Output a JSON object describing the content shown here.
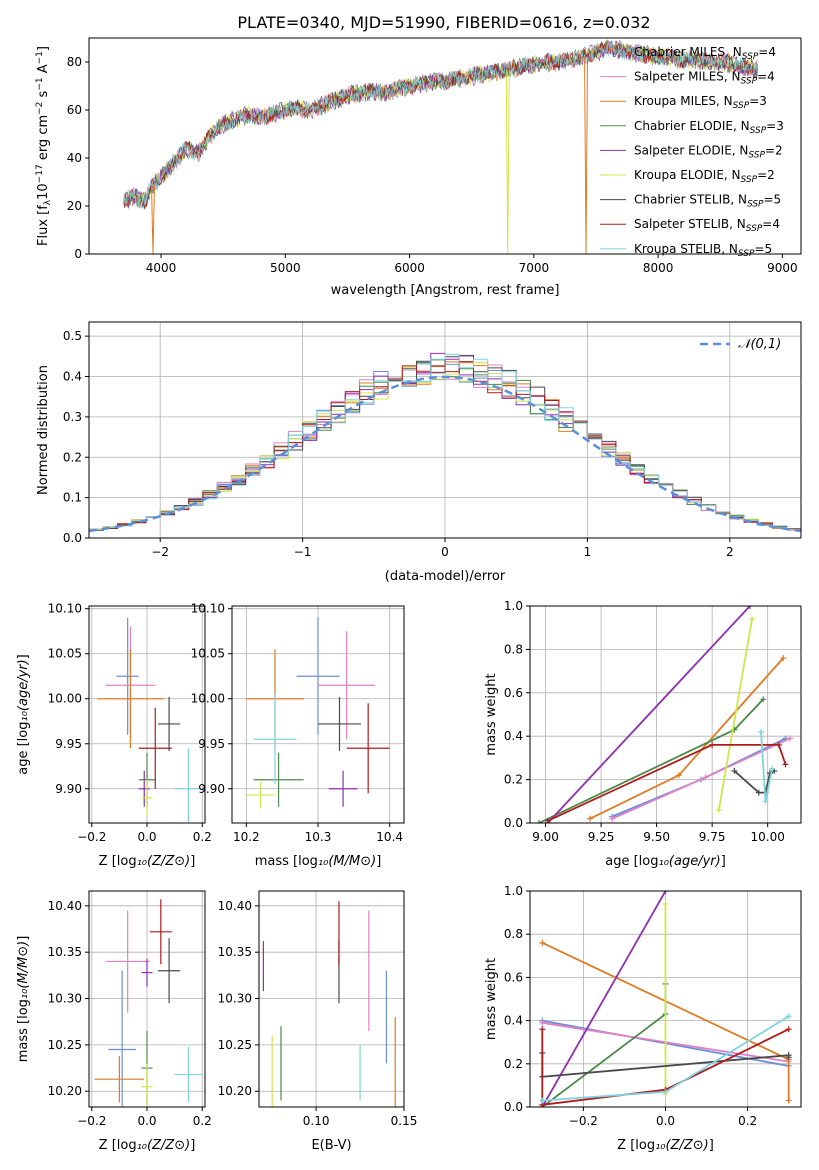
{
  "figure_title": "PLATE=0340, MJD=51990, FIBERID=0616, z=0.032",
  "colors": {
    "Chabrier MILES": "#6b8fd6",
    "Salpeter MILES": "#e27fc7",
    "Kroupa MILES": "#e07b22",
    "Chabrier ELODIE": "#4c8a4c",
    "Salpeter ELODIE": "#8e2fb0",
    "Kroupa ELODIE": "#cfe64a",
    "Chabrier STELIB": "#4a4a4a",
    "Salpeter STELIB": "#b01c1c",
    "Kroupa STELIB": "#7fd3df"
  },
  "chart_data": [
    {
      "id": "spectrum",
      "type": "line",
      "title": "PLATE=0340, MJD=51990, FIBERID=0616, z=0.032",
      "xlabel": "wavelength [Angstrom, rest frame]",
      "ylabel": "Flux [f_λ 10^-17 erg cm^-2 s^-1 A^-1]",
      "xlim": [
        3420,
        9150
      ],
      "ylim": [
        0,
        90
      ],
      "xticks": [
        4000,
        5000,
        6000,
        7000,
        8000,
        9000
      ],
      "yticks": [
        0,
        20,
        40,
        60,
        80
      ],
      "grid": false,
      "legend_position": "upper-right",
      "legend": [
        {
          "label": "Chabrier MILES, N",
          "sub": "SSP",
          "tail": "=4",
          "series": "Chabrier MILES"
        },
        {
          "label": "Salpeter MILES, N",
          "sub": "SSP",
          "tail": "=4",
          "series": "Salpeter MILES"
        },
        {
          "label": "Kroupa MILES, N",
          "sub": "SSP",
          "tail": "=3",
          "series": "Kroupa MILES"
        },
        {
          "label": "Chabrier ELODIE, N",
          "sub": "SSP",
          "tail": "=3",
          "series": "Chabrier ELODIE"
        },
        {
          "label": "Salpeter ELODIE, N",
          "sub": "SSP",
          "tail": "=2",
          "series": "Salpeter ELODIE"
        },
        {
          "label": "Kroupa ELODIE, N",
          "sub": "SSP",
          "tail": "=2",
          "series": "Kroupa ELODIE"
        },
        {
          "label": "Chabrier STELIB, N",
          "sub": "SSP",
          "tail": "=5",
          "series": "Chabrier STELIB"
        },
        {
          "label": "Salpeter STELIB, N",
          "sub": "SSP",
          "tail": "=4",
          "series": "Salpeter STELIB"
        },
        {
          "label": "Kroupa STELIB, N",
          "sub": "SSP",
          "tail": "=5",
          "series": "Kroupa STELIB"
        }
      ],
      "continuum": [
        [
          3700,
          22
        ],
        [
          3780,
          24
        ],
        [
          3880,
          22
        ],
        [
          3920,
          28
        ],
        [
          3960,
          30
        ],
        [
          4000,
          32
        ],
        [
          4100,
          38
        ],
        [
          4200,
          44
        ],
        [
          4300,
          42
        ],
        [
          4400,
          50
        ],
        [
          4500,
          54
        ],
        [
          4600,
          56
        ],
        [
          4700,
          58
        ],
        [
          4800,
          57
        ],
        [
          4900,
          58
        ],
        [
          5000,
          60
        ],
        [
          5100,
          61
        ],
        [
          5200,
          60
        ],
        [
          5300,
          62
        ],
        [
          5400,
          64
        ],
        [
          5500,
          66
        ],
        [
          5600,
          67
        ],
        [
          5700,
          68
        ],
        [
          5800,
          67
        ],
        [
          5900,
          69
        ],
        [
          6000,
          70
        ],
        [
          6100,
          71
        ],
        [
          6200,
          72
        ],
        [
          6300,
          72
        ],
        [
          6400,
          73
        ],
        [
          6500,
          74
        ],
        [
          6600,
          75
        ],
        [
          6700,
          76
        ],
        [
          6800,
          77
        ],
        [
          6900,
          78
        ],
        [
          7000,
          79
        ],
        [
          7100,
          80
        ],
        [
          7200,
          80
        ],
        [
          7300,
          81
        ],
        [
          7400,
          82
        ],
        [
          7500,
          84
        ],
        [
          7600,
          86
        ],
        [
          7700,
          85
        ],
        [
          7800,
          84
        ],
        [
          7900,
          83
        ],
        [
          8000,
          82
        ],
        [
          8100,
          82
        ],
        [
          8200,
          81
        ],
        [
          8300,
          81
        ],
        [
          8400,
          80
        ],
        [
          8500,
          80
        ],
        [
          8600,
          79
        ],
        [
          8700,
          78
        ],
        [
          8800,
          77
        ]
      ],
      "dips": [
        {
          "series": "Kroupa MILES",
          "x": 3935,
          "y": 0
        },
        {
          "series": "Kroupa ELODIE",
          "x": 6790,
          "y": 0
        },
        {
          "series": "Kroupa MILES",
          "x": 7420,
          "y": 0
        }
      ]
    },
    {
      "id": "residuals",
      "type": "histogram",
      "xlabel": "(data-model)/error",
      "ylabel": "Normed distribution",
      "xlim": [
        -2.5,
        2.5
      ],
      "ylim": [
        0,
        0.535
      ],
      "xticks": [
        -2,
        -1,
        0,
        1,
        2
      ],
      "yticks": [
        0.0,
        0.1,
        0.2,
        0.3,
        0.4,
        0.5
      ],
      "grid": true,
      "legend_position": "upper-right",
      "legend": "𝒩(0,1)",
      "reference_curve": "normal(0,1)",
      "bin_width": 0.1
    },
    {
      "id": "z-age",
      "type": "errorbar",
      "xlabel": "Z [log10(Z/Z⊙)]",
      "ylabel": "age [log10(age/yr)]",
      "xlim": [
        -0.21,
        0.21
      ],
      "ylim": [
        9.862,
        10.103
      ],
      "xticks": [
        -0.2,
        0.0,
        0.2
      ],
      "yticks": [
        9.9,
        9.95,
        10.0,
        10.05,
        10.1
      ],
      "grid": true,
      "points": [
        {
          "series": "Chabrier MILES",
          "x": -0.07,
          "xerr": 0.04,
          "y": 10.025,
          "yerr": 0.065
        },
        {
          "series": "Salpeter MILES",
          "x": -0.06,
          "xerr": 0.09,
          "y": 10.015,
          "yerr": 0.065
        },
        {
          "series": "Kroupa MILES",
          "x": -0.06,
          "xerr": 0.12,
          "y": 10.0,
          "yerr": 0.055
        },
        {
          "series": "Chabrier ELODIE",
          "x": 0.0,
          "xerr": 0.03,
          "y": 9.91,
          "yerr": 0.03
        },
        {
          "series": "Salpeter ELODIE",
          "x": -0.01,
          "xerr": 0.02,
          "y": 9.9,
          "yerr": 0.02
        },
        {
          "series": "Kroupa ELODIE",
          "x": 0.0,
          "xerr": 0.02,
          "y": 9.89,
          "yerr": 0.02
        },
        {
          "series": "Chabrier STELIB",
          "x": 0.08,
          "xerr": 0.04,
          "y": 9.972,
          "yerr": 0.03
        },
        {
          "series": "Salpeter STELIB",
          "x": 0.03,
          "xerr": 0.06,
          "y": 9.945,
          "yerr": 0.045
        },
        {
          "series": "Kroupa STELIB",
          "x": 0.15,
          "xerr": 0.05,
          "y": 9.9,
          "yerr": 0.045
        }
      ]
    },
    {
      "id": "mass-age",
      "type": "errorbar",
      "xlabel": "mass [log10(M/M⊙)]",
      "ylabel": "",
      "xlim": [
        10.18,
        10.42
      ],
      "ylim": [
        9.862,
        10.103
      ],
      "xticks": [
        10.2,
        10.3,
        10.4
      ],
      "yticks": [
        9.9,
        9.95,
        10.0,
        10.05,
        10.1
      ],
      "grid": true,
      "points": [
        {
          "series": "Chabrier MILES",
          "x": 10.3,
          "xerr": 0.03,
          "y": 10.025,
          "yerr": 0.065
        },
        {
          "series": "Salpeter MILES",
          "x": 10.34,
          "xerr": 0.04,
          "y": 10.015,
          "yerr": 0.06
        },
        {
          "series": "Kroupa MILES",
          "x": 10.24,
          "xerr": 0.04,
          "y": 10.0,
          "yerr": 0.055
        },
        {
          "series": "Chabrier ELODIE",
          "x": 10.245,
          "xerr": 0.035,
          "y": 9.91,
          "yerr": 0.03
        },
        {
          "series": "Salpeter ELODIE",
          "x": 10.335,
          "xerr": 0.02,
          "y": 9.9,
          "yerr": 0.02
        },
        {
          "series": "Kroupa ELODIE",
          "x": 10.22,
          "xerr": 0.02,
          "y": 9.893,
          "yerr": 0.015
        },
        {
          "series": "Chabrier STELIB",
          "x": 10.33,
          "xerr": 0.03,
          "y": 9.972,
          "yerr": 0.03
        },
        {
          "series": "Salpeter STELIB",
          "x": 10.37,
          "xerr": 0.03,
          "y": 9.945,
          "yerr": 0.05
        },
        {
          "series": "Kroupa STELIB",
          "x": 10.24,
          "xerr": 0.03,
          "y": 9.955,
          "yerr": 0.05
        }
      ]
    },
    {
      "id": "age-weight",
      "type": "line",
      "xlabel": "age [log10(age/yr)]",
      "ylabel": "mass weight",
      "xlim": [
        8.93,
        10.15
      ],
      "ylim": [
        0,
        1
      ],
      "xticks": [
        9.0,
        9.25,
        9.5,
        9.75,
        10.0
      ],
      "yticks": [
        0.0,
        0.2,
        0.4,
        0.6,
        0.8,
        1.0
      ],
      "grid": true,
      "series": [
        {
          "name": "Chabrier MILES",
          "x": [
            9.3,
            9.7,
            10.08
          ],
          "y": [
            0.03,
            0.2,
            0.39
          ]
        },
        {
          "name": "Salpeter MILES",
          "x": [
            9.3,
            9.72,
            10.1
          ],
          "y": [
            0.02,
            0.21,
            0.39
          ]
        },
        {
          "name": "Kroupa MILES",
          "x": [
            9.2,
            9.6,
            10.07
          ],
          "y": [
            0.02,
            0.22,
            0.76
          ]
        },
        {
          "name": "Chabrier ELODIE",
          "x": [
            8.97,
            9.85,
            9.98
          ],
          "y": [
            0.0,
            0.43,
            0.57
          ]
        },
        {
          "name": "Salpeter ELODIE",
          "x": [
            9.01,
            9.92
          ],
          "y": [
            0.0,
            1.0
          ]
        },
        {
          "name": "Kroupa ELODIE",
          "x": [
            9.78,
            9.93
          ],
          "y": [
            0.06,
            0.94
          ]
        },
        {
          "name": "Chabrier STELIB",
          "x": [
            9.85,
            9.96,
            9.99,
            10.01,
            10.03
          ],
          "y": [
            0.24,
            0.14,
            0.14,
            0.23,
            0.24
          ]
        },
        {
          "name": "Salpeter STELIB",
          "x": [
            9.01,
            9.75,
            10.05,
            10.08
          ],
          "y": [
            0.01,
            0.36,
            0.36,
            0.27
          ]
        },
        {
          "name": "Kroupa STELIB",
          "x": [
            9.97,
            9.99,
            10.02
          ],
          "y": [
            0.42,
            0.1,
            0.25
          ]
        }
      ]
    },
    {
      "id": "z-mass",
      "type": "errorbar",
      "xlabel": "Z [log10(Z/Z⊙)]",
      "ylabel": "mass [log10(M/M⊙)]",
      "xlim": [
        -0.21,
        0.21
      ],
      "ylim": [
        10.183,
        10.416
      ],
      "xticks": [
        -0.2,
        0.0,
        0.2
      ],
      "yticks": [
        10.2,
        10.25,
        10.3,
        10.35,
        10.4
      ],
      "grid": true,
      "points": [
        {
          "series": "Chabrier MILES",
          "x": -0.09,
          "xerr": 0.05,
          "y": 10.245,
          "yerr": 0.085
        },
        {
          "series": "Salpeter MILES",
          "x": -0.07,
          "xerr": 0.08,
          "y": 10.34,
          "yerr": 0.055
        },
        {
          "series": "Kroupa MILES",
          "x": -0.1,
          "xerr": 0.09,
          "y": 10.213,
          "yerr": 0.025
        },
        {
          "series": "Chabrier ELODIE",
          "x": 0.0,
          "xerr": 0.02,
          "y": 10.225,
          "yerr": 0.04
        },
        {
          "series": "Salpeter ELODIE",
          "x": 0.0,
          "xerr": 0.02,
          "y": 10.328,
          "yerr": 0.015
        },
        {
          "series": "Kroupa ELODIE",
          "x": 0.0,
          "xerr": 0.02,
          "y": 10.205,
          "yerr": 0.025
        },
        {
          "series": "Chabrier STELIB",
          "x": 0.08,
          "xerr": 0.04,
          "y": 10.33,
          "yerr": 0.035
        },
        {
          "series": "Salpeter STELIB",
          "x": 0.05,
          "xerr": 0.04,
          "y": 10.372,
          "yerr": 0.035
        },
        {
          "series": "Kroupa STELIB",
          "x": 0.15,
          "xerr": 0.05,
          "y": 10.218,
          "yerr": 0.03
        }
      ]
    },
    {
      "id": "ebv-mass",
      "type": "errorbar",
      "xlabel": "E(B-V)",
      "ylabel": "",
      "xlim": [
        0.0675,
        0.15
      ],
      "ylim": [
        10.183,
        10.416
      ],
      "xticks": [
        0.05,
        0.1,
        0.15
      ],
      "yticks": [
        10.2,
        10.25,
        10.3,
        10.35,
        10.4
      ],
      "grid": true,
      "points": [
        {
          "series": "Chabrier MILES",
          "x": 0.14,
          "xerr": 0.0,
          "y": 10.28,
          "yerr": 0.05
        },
        {
          "series": "Salpeter MILES",
          "x": 0.13,
          "xerr": 0.0,
          "y": 10.33,
          "yerr": 0.065
        },
        {
          "series": "Kroupa MILES",
          "x": 0.145,
          "xerr": 0.0,
          "y": 10.23,
          "yerr": 0.05
        },
        {
          "series": "Chabrier ELODIE",
          "x": 0.08,
          "xerr": 0.0,
          "y": 10.23,
          "yerr": 0.04
        },
        {
          "series": "Salpeter ELODIE",
          "x": 0.07,
          "xerr": 0.0,
          "y": 10.335,
          "yerr": 0.027
        },
        {
          "series": "Kroupa ELODIE",
          "x": 0.075,
          "xerr": 0.0,
          "y": 10.22,
          "yerr": 0.04
        },
        {
          "series": "Chabrier STELIB",
          "x": 0.113,
          "xerr": 0.0,
          "y": 10.33,
          "yerr": 0.035
        },
        {
          "series": "Salpeter STELIB",
          "x": 0.113,
          "xerr": 0.0,
          "y": 10.37,
          "yerr": 0.035
        },
        {
          "series": "Kroupa STELIB",
          "x": 0.125,
          "xerr": 0.0,
          "y": 10.22,
          "yerr": 0.03
        }
      ]
    },
    {
      "id": "z-weight",
      "type": "line",
      "xlabel": "Z [log10(Z/Z⊙)]",
      "ylabel": "mass weight",
      "xlim": [
        -0.33,
        0.33
      ],
      "ylim": [
        0,
        1
      ],
      "xticks": [
        -0.2,
        0.0,
        0.2
      ],
      "yticks": [
        0.0,
        0.2,
        0.4,
        0.6,
        0.8,
        1.0
      ],
      "grid": true,
      "series": [
        {
          "name": "Chabrier MILES",
          "x": [
            -0.3,
            0.3
          ],
          "y": [
            0.4,
            0.19
          ]
        },
        {
          "name": "Salpeter MILES",
          "x": [
            -0.3,
            0.3
          ],
          "y": [
            0.39,
            0.21
          ]
        },
        {
          "name": "Kroupa MILES",
          "x": [
            -0.3,
            0.3,
            0.3
          ],
          "y": [
            0.76,
            0.22,
            0.03
          ]
        },
        {
          "name": "Chabrier ELODIE",
          "x": [
            -0.3,
            0.0,
            0.0
          ],
          "y": [
            0.0,
            0.43,
            0.57
          ]
        },
        {
          "name": "Salpeter ELODIE",
          "x": [
            -0.3,
            0.0
          ],
          "y": [
            0.0,
            1.0
          ]
        },
        {
          "name": "Kroupa ELODIE",
          "x": [
            0.0,
            0.0
          ],
          "y": [
            0.06,
            0.94
          ]
        },
        {
          "name": "Chabrier STELIB",
          "x": [
            -0.3,
            -0.3,
            0.3,
            0.3
          ],
          "y": [
            0.25,
            0.14,
            0.24,
            0.23
          ]
        },
        {
          "name": "Salpeter STELIB",
          "x": [
            -0.3,
            -0.3,
            0.0,
            0.3
          ],
          "y": [
            0.36,
            0.01,
            0.08,
            0.36
          ]
        },
        {
          "name": "Kroupa STELIB",
          "x": [
            -0.3,
            0.0,
            0.3
          ],
          "y": [
            0.03,
            0.07,
            0.42
          ]
        }
      ]
    }
  ]
}
